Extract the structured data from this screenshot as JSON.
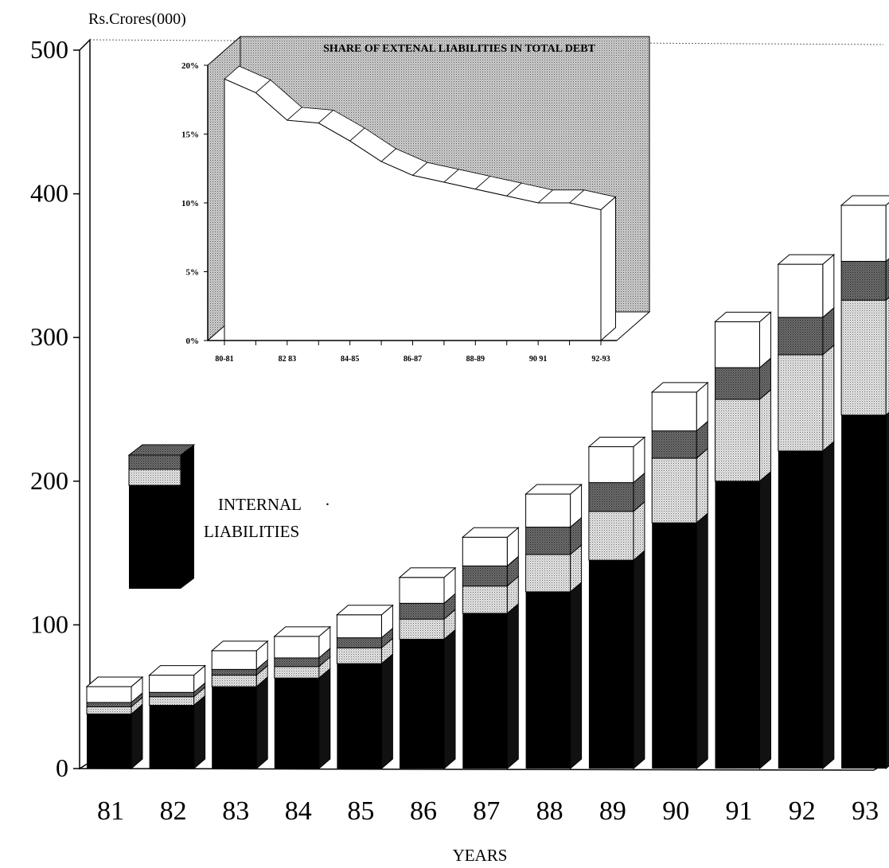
{
  "chart_data": [
    {
      "type": "bar",
      "stacked": true,
      "ylabel": "Rs.Crores(000)",
      "xlabel": "YEARS",
      "ylim": [
        0,
        500
      ],
      "yticks": [
        0,
        100,
        200,
        300,
        400,
        500
      ],
      "categories": [
        "81",
        "82",
        "83",
        "84",
        "85",
        "86",
        "87",
        "88",
        "89",
        "90",
        "91",
        "92",
        "93"
      ],
      "series": [
        {
          "name": "INTERNAL LIABILITIES",
          "values": [
            38,
            44,
            57,
            63,
            73,
            90,
            108,
            123,
            145,
            171,
            200,
            221,
            246
          ],
          "color": "#000000"
        },
        {
          "values": [
            5,
            6,
            8,
            8,
            11,
            14,
            19,
            26,
            34,
            45,
            57,
            67,
            80
          ],
          "color": "#d8d8d8"
        },
        {
          "values": [
            3,
            3,
            4,
            6,
            7,
            11,
            14,
            19,
            20,
            19,
            22,
            26,
            27
          ],
          "color": "#888888"
        },
        {
          "values": [
            11,
            12,
            13,
            15,
            16,
            18,
            20,
            23,
            25,
            27,
            32,
            37,
            39
          ],
          "color": "#ffffff"
        }
      ],
      "legend": {
        "label_lines": [
          "INTERNAL",
          "LIABILITIES"
        ],
        "bullet": "·",
        "position": "left-middle"
      },
      "grid": false
    },
    {
      "type": "area",
      "title": "SHARE OF EXTENAL LIABILITIES IN TOTAL DEBT",
      "x_ticks": [
        "80-81",
        "82 83",
        "84-85",
        "86-87",
        "88-89",
        "90 91",
        "92-93"
      ],
      "y_ticks": [
        "0%",
        "5%",
        "10%",
        "15%",
        "20%"
      ],
      "ylim": [
        0,
        20
      ],
      "values": [
        19,
        18,
        16,
        15.8,
        14.5,
        13,
        12,
        11.5,
        11,
        10.5,
        10,
        10,
        9.5
      ],
      "position": "top-left"
    }
  ]
}
